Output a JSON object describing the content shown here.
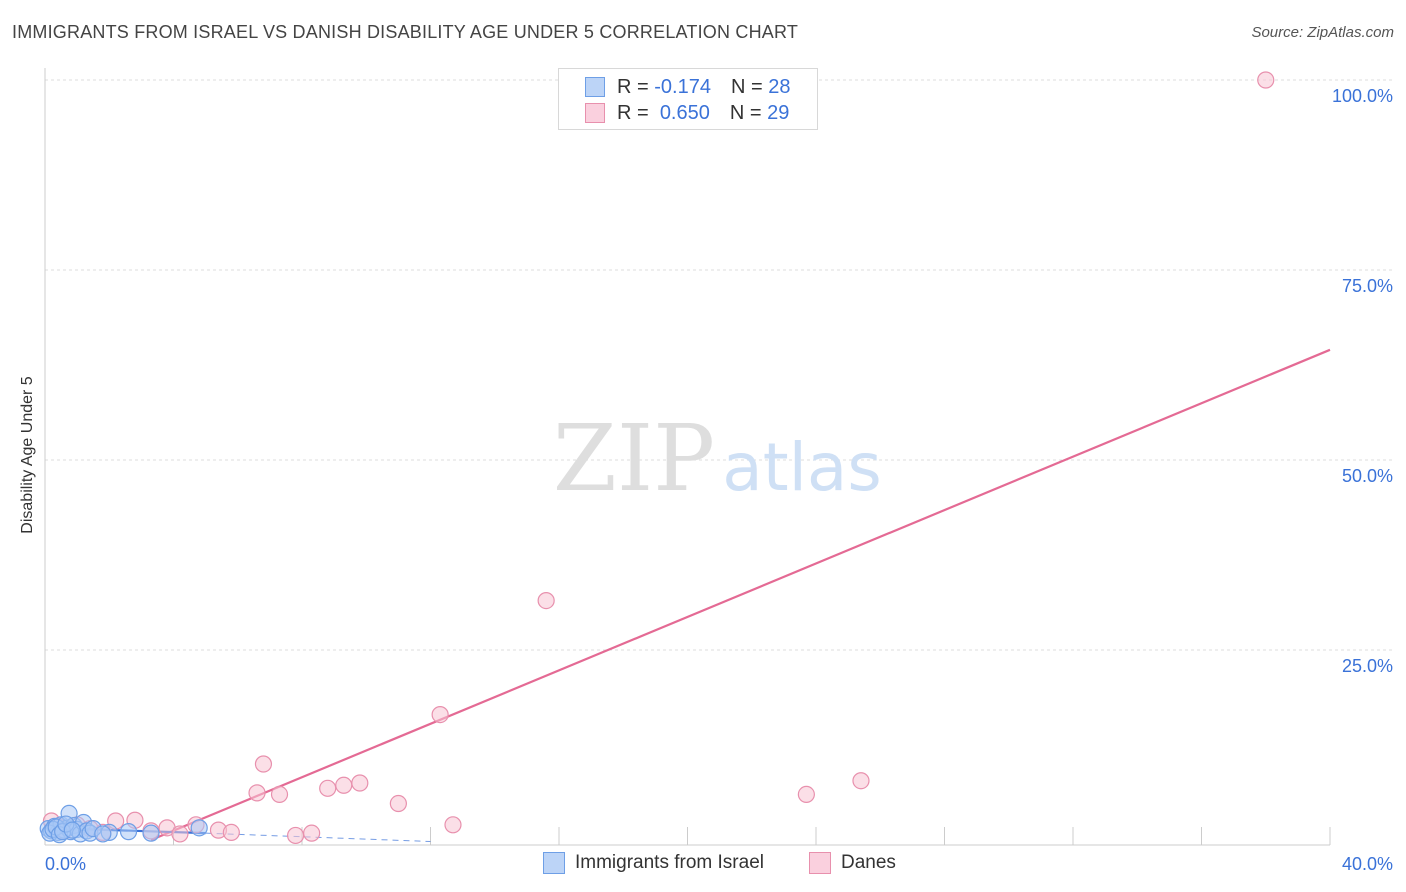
{
  "title": "IMMIGRANTS FROM ISRAEL VS DANISH DISABILITY AGE UNDER 5 CORRELATION CHART",
  "source": "Source: ZipAtlas.com",
  "watermark": {
    "zip": "ZIP",
    "atlas": "atlas"
  },
  "legend": {
    "series1": {
      "r_label": "R =",
      "r_value": "-0.174",
      "n_label": "N =",
      "n_value": "28"
    },
    "series2": {
      "r_label": "R =",
      "r_value": "0.650",
      "n_label": "N =",
      "n_value": "29"
    }
  },
  "colors": {
    "israel_fill": "#a9c8f5",
    "israel_stroke": "#6e9fe6",
    "israel_line": "#3a72d8",
    "danes_fill": "#f8c4d4",
    "danes_stroke": "#e890ad",
    "danes_line": "#e46a94",
    "tick_label": "#3a72d8",
    "grid": "#dddddd"
  },
  "chart_data": {
    "type": "scatter",
    "title": "IMMIGRANTS FROM ISRAEL VS DANISH DISABILITY AGE UNDER 5 CORRELATION CHART",
    "xlabel": "",
    "ylabel": "Disability Age Under 5",
    "xlim": [
      0,
      40
    ],
    "ylim": [
      0,
      100
    ],
    "x_tick_labels": [
      "0.0%",
      "40.0%"
    ],
    "y_ticks": [
      25,
      50,
      75,
      100
    ],
    "y_tick_labels": [
      "25.0%",
      "50.0%",
      "75.0%",
      "100.0%"
    ],
    "grid": true,
    "legend_position": "bottom",
    "series": [
      {
        "name": "Immigrants from Israel",
        "points": [
          [
            0.1,
            1.5
          ],
          [
            0.2,
            1.2
          ],
          [
            0.3,
            1.8
          ],
          [
            0.4,
            1.0
          ],
          [
            0.5,
            2.0
          ],
          [
            0.6,
            1.3
          ],
          [
            0.7,
            1.6
          ],
          [
            0.75,
            3.5
          ],
          [
            0.8,
            1.1
          ],
          [
            0.9,
            1.9
          ],
          [
            1.0,
            1.4
          ],
          [
            1.1,
            0.8
          ],
          [
            1.2,
            2.3
          ],
          [
            1.3,
            1.2
          ],
          [
            1.4,
            0.9
          ],
          [
            1.5,
            1.5
          ],
          [
            0.15,
            0.9
          ],
          [
            0.25,
            1.4
          ],
          [
            0.35,
            1.7
          ],
          [
            0.45,
            0.7
          ],
          [
            0.55,
            1.1
          ],
          [
            0.65,
            2.1
          ],
          [
            0.85,
            1.3
          ],
          [
            2.0,
            1.0
          ],
          [
            2.6,
            1.1
          ],
          [
            3.3,
            0.9
          ],
          [
            4.8,
            1.6
          ],
          [
            1.8,
            0.8
          ]
        ],
        "trend": {
          "x": [
            0,
            5
          ],
          "y": [
            1.6,
            0.9
          ]
        },
        "trend_extension": {
          "x": [
            5,
            12
          ],
          "y": [
            0.9,
            -0.2
          ]
        }
      },
      {
        "name": "Danes",
        "points": [
          [
            0.2,
            2.5
          ],
          [
            0.4,
            1.8
          ],
          [
            0.6,
            1.2
          ],
          [
            1.0,
            2.0
          ],
          [
            1.4,
            1.5
          ],
          [
            1.8,
            1.0
          ],
          [
            2.2,
            2.5
          ],
          [
            2.8,
            2.6
          ],
          [
            3.3,
            1.2
          ],
          [
            3.8,
            1.6
          ],
          [
            4.2,
            0.8
          ],
          [
            4.7,
            2.0
          ],
          [
            5.4,
            1.3
          ],
          [
            5.8,
            1.0
          ],
          [
            6.6,
            6.2
          ],
          [
            6.8,
            10.0
          ],
          [
            7.3,
            6.0
          ],
          [
            7.8,
            0.6
          ],
          [
            8.3,
            0.9
          ],
          [
            8.8,
            6.8
          ],
          [
            9.3,
            7.2
          ],
          [
            9.8,
            7.5
          ],
          [
            11.0,
            4.8
          ],
          [
            12.3,
            16.5
          ],
          [
            12.7,
            2.0
          ],
          [
            15.6,
            31.5
          ],
          [
            23.7,
            6.0
          ],
          [
            25.4,
            7.8
          ],
          [
            38.0,
            100.0
          ]
        ],
        "trend": {
          "x": [
            3.3,
            40
          ],
          "y": [
            0,
            64.5
          ]
        }
      }
    ]
  }
}
